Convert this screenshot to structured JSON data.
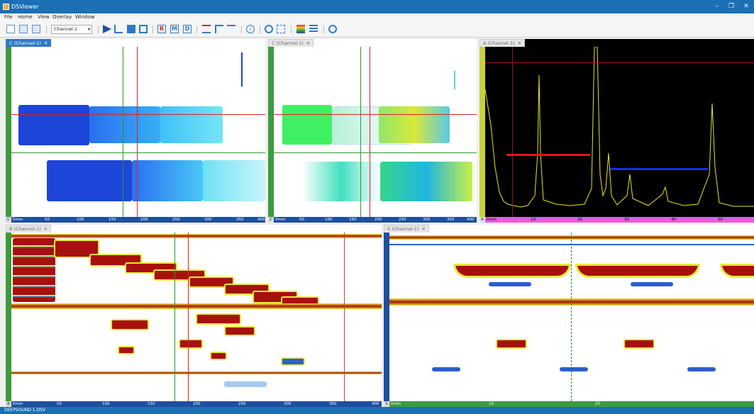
{
  "window": {
    "title": "DSViewer",
    "minimize": "–",
    "maximize": "❐",
    "close": "✕"
  },
  "menu": [
    "File",
    "Home",
    "View",
    "Overlay",
    "Window"
  ],
  "toolbar": {
    "channel_value": "Channel-1",
    "icons": [
      "new-file-icon",
      "open-icon",
      "open-multi-icon",
      "shape-icon",
      "waveform-icon",
      "view-box-icon",
      "view-3d-icon",
      "r-mode-icon",
      "m-mode-icon",
      "d-mode-icon",
      "gate-a-icon",
      "gate-b-icon",
      "gate-t-icon",
      "info-icon",
      "refresh-icon",
      "zoom-region-icon",
      "palette-icon",
      "layers-icon",
      "zoom-icon"
    ]
  },
  "panes": {
    "c1": {
      "tab": "C (Channel-1)",
      "corner": "C",
      "ticks": [
        "0mm",
        "50",
        "100",
        "150",
        "200",
        "250",
        "300",
        "350",
        "400"
      ]
    },
    "c2": {
      "tab": "C (Channel-1)",
      "corner": "C",
      "ticks": [
        "0mm",
        "50",
        "100",
        "150",
        "200",
        "250",
        "300",
        "350",
        "400"
      ]
    },
    "a": {
      "tab": "A (Channel-1)",
      "corner": "A",
      "ticks": [
        "0mm",
        "10",
        "20",
        "30",
        "40",
        "50"
      ]
    },
    "b": {
      "tab": "B (Channel-1)",
      "corner": "B",
      "ticks": [
        "0mm",
        "50",
        "100",
        "150",
        "200",
        "250",
        "300",
        "350",
        "400"
      ]
    },
    "s": {
      "tab": "S (Channel-1)",
      "corner": "S",
      "ticks": [
        "0mm",
        "10",
        "20"
      ]
    }
  },
  "status": {
    "text": "DEEPSOUND 1.DSV"
  }
}
